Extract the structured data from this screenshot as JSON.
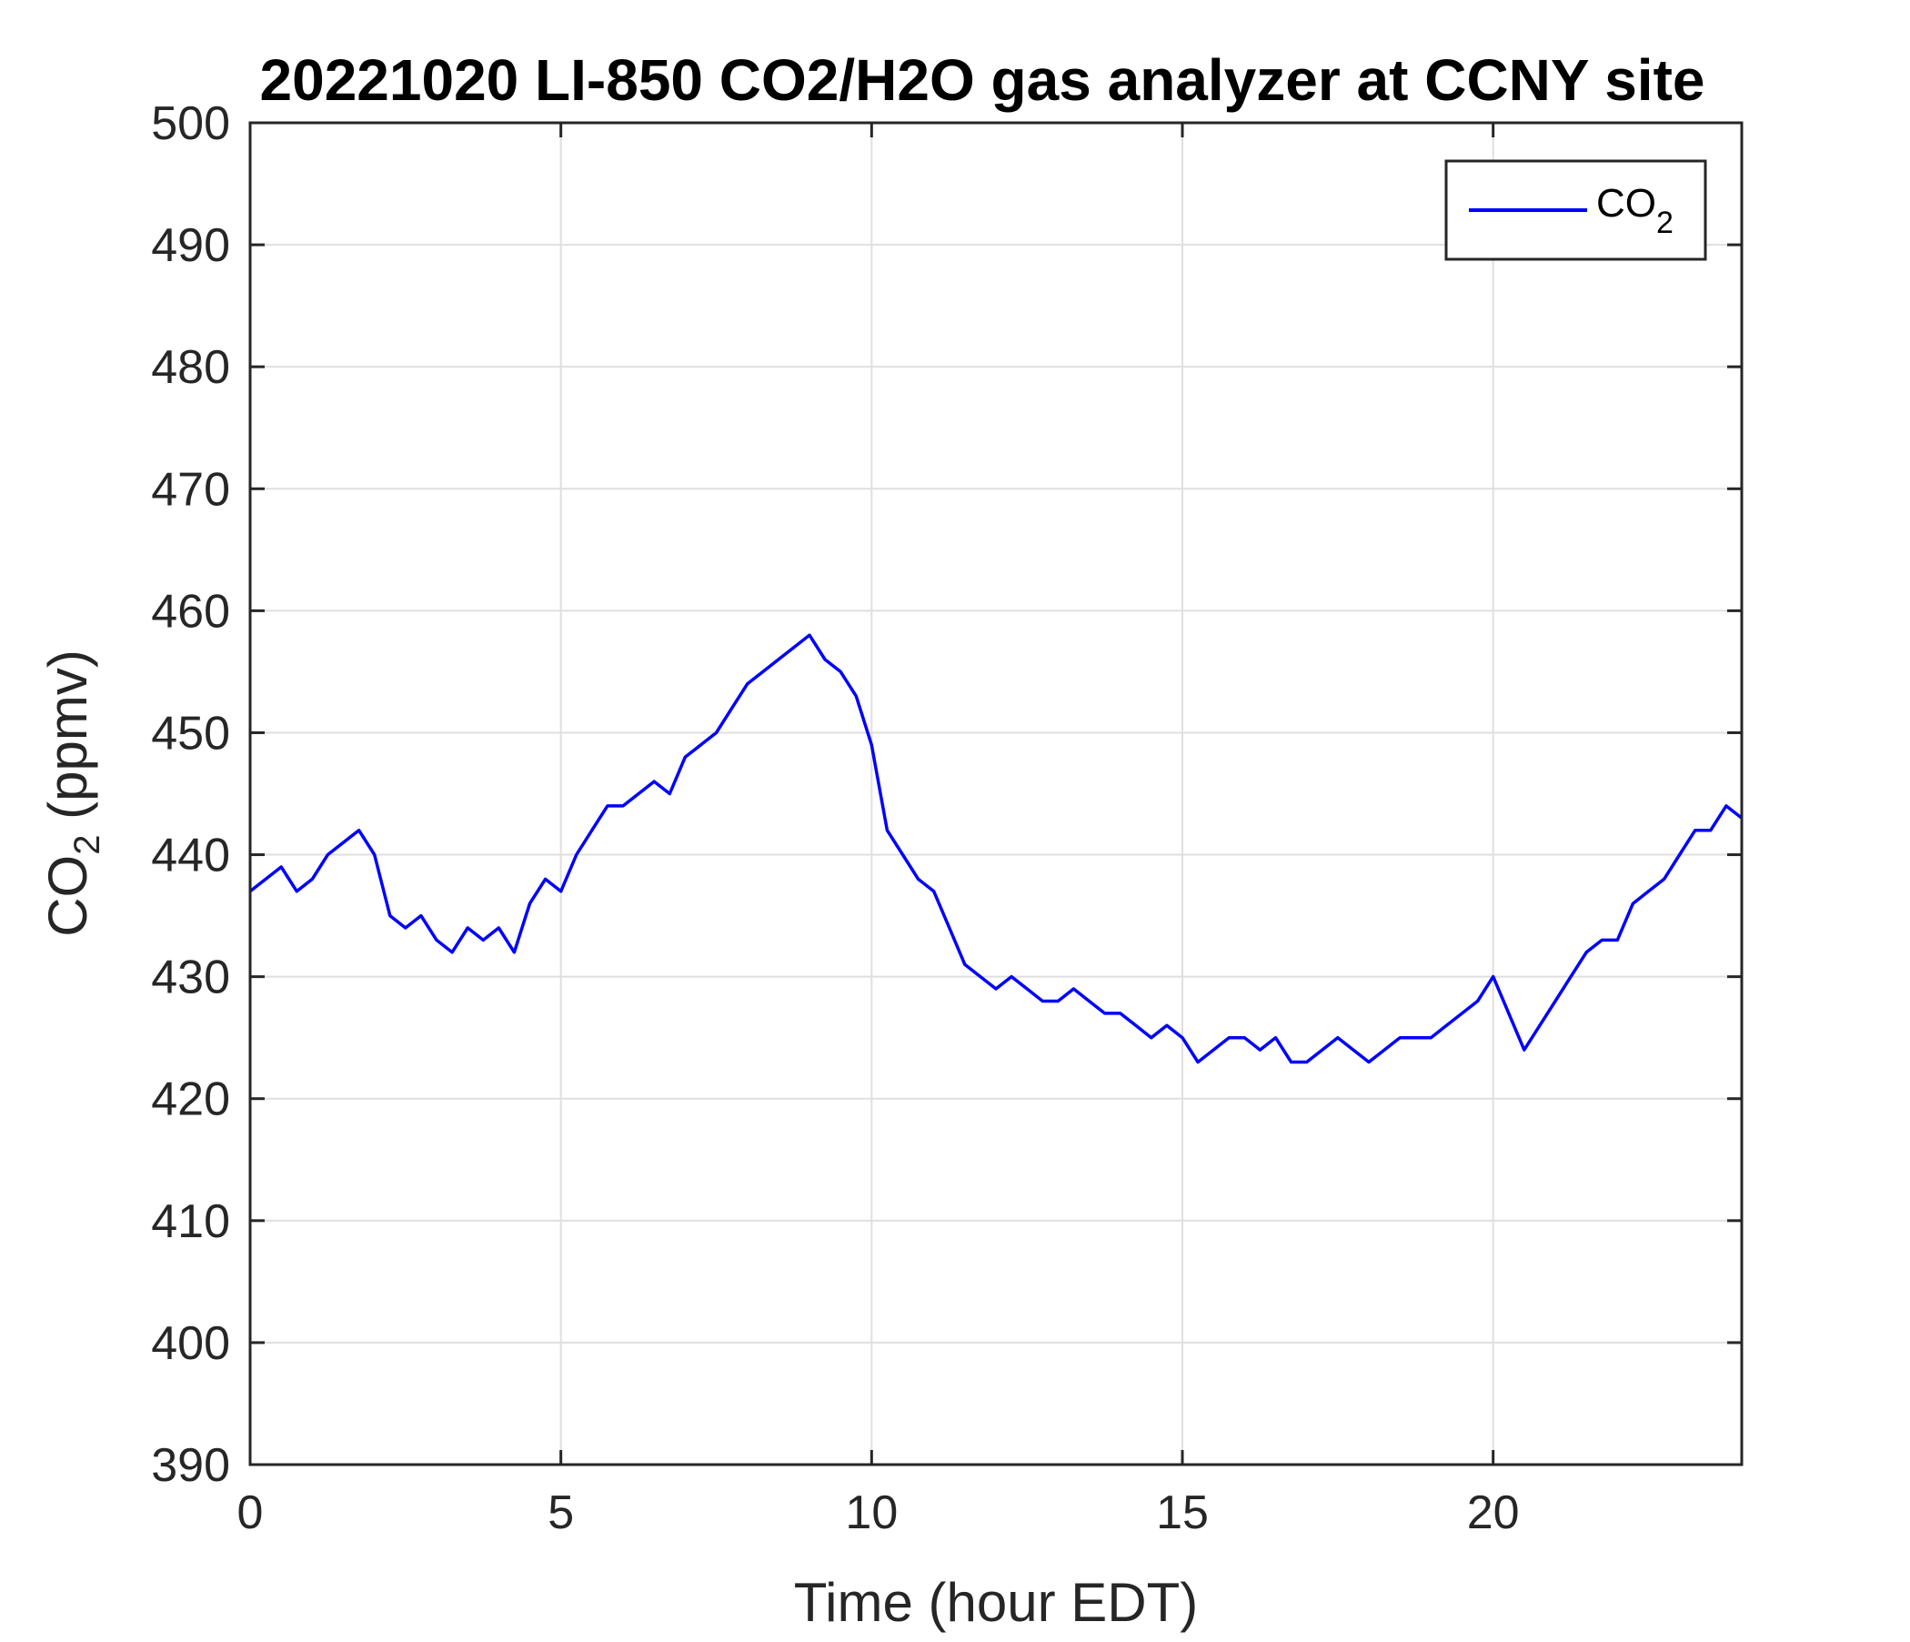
{
  "chart_data": {
    "type": "line",
    "title": "20221020 LI-850 CO2/H2O gas analyzer at CCNY site",
    "xlabel": "Time (hour EDT)",
    "ylabel": {
      "base": "CO",
      "sub": "2",
      "rest": " (ppmv)"
    },
    "xlim": [
      0,
      24
    ],
    "ylim": [
      390,
      500
    ],
    "xticks": [
      0,
      5,
      10,
      15,
      20
    ],
    "yticks": [
      390,
      400,
      410,
      420,
      430,
      440,
      450,
      460,
      470,
      480,
      490,
      500
    ],
    "grid": true,
    "legend_position": "top-right",
    "series": [
      {
        "name": {
          "base": "CO",
          "sub": "2"
        },
        "color": "#0000ff",
        "x": [
          0,
          0.25,
          0.5,
          0.75,
          1,
          1.25,
          1.5,
          1.75,
          2,
          2.25,
          2.5,
          2.75,
          3,
          3.25,
          3.5,
          3.75,
          4,
          4.25,
          4.5,
          4.75,
          5,
          5.25,
          5.5,
          5.75,
          6,
          6.25,
          6.5,
          6.75,
          7,
          7.25,
          7.5,
          7.75,
          8,
          8.25,
          8.5,
          8.75,
          9,
          9.25,
          9.5,
          9.75,
          10,
          10.25,
          10.5,
          10.75,
          11,
          11.25,
          11.5,
          11.75,
          12,
          12.25,
          12.5,
          12.75,
          13,
          13.25,
          13.5,
          13.75,
          14,
          14.25,
          14.5,
          14.75,
          15,
          15.25,
          15.5,
          15.75,
          16,
          16.25,
          16.5,
          16.75,
          17,
          17.25,
          17.5,
          17.75,
          18,
          18.25,
          18.5,
          18.75,
          19,
          19.25,
          19.5,
          19.75,
          20,
          20.25,
          20.5,
          20.75,
          21,
          21.25,
          21.5,
          21.75,
          22,
          22.25,
          22.5,
          22.75,
          23,
          23.25,
          23.5,
          23.75,
          24
        ],
        "y": [
          437,
          438,
          439,
          437,
          438,
          440,
          441,
          442,
          440,
          435,
          434,
          435,
          433,
          432,
          434,
          433,
          434,
          432,
          436,
          438,
          437,
          440,
          442,
          444,
          444,
          445,
          446,
          445,
          448,
          449,
          450,
          452,
          454,
          455,
          456,
          457,
          458,
          456,
          455,
          453,
          449,
          442,
          440,
          438,
          437,
          434,
          431,
          430,
          429,
          430,
          429,
          428,
          428,
          429,
          428,
          427,
          427,
          426,
          425,
          426,
          425,
          423,
          424,
          425,
          425,
          424,
          425,
          423,
          423,
          424,
          425,
          424,
          423,
          424,
          425,
          425,
          425,
          426,
          427,
          428,
          430,
          427,
          424,
          426,
          428,
          430,
          432,
          433,
          433,
          436,
          437,
          438,
          440,
          442,
          442,
          444,
          443
        ]
      }
    ]
  }
}
